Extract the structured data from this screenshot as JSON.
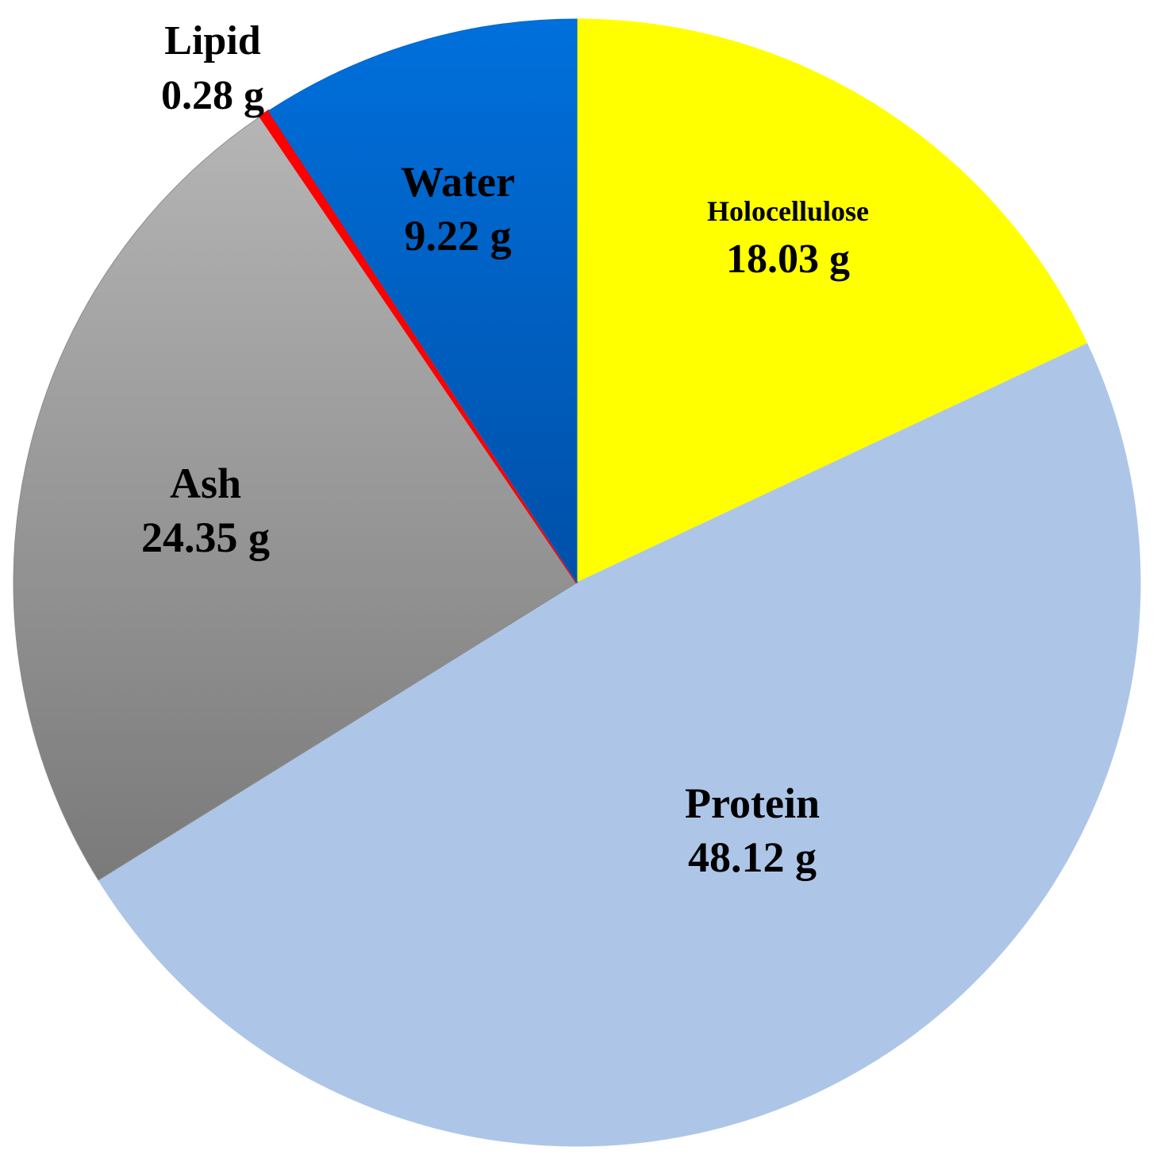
{
  "chart_data": {
    "type": "pie",
    "unit": "g",
    "start_angle_deg": 0,
    "direction": "clockwise",
    "slices": [
      {
        "name": "Holocellulose",
        "value": 18.03,
        "label": "18.03 g",
        "color": "#FFFF00"
      },
      {
        "name": "Protein",
        "value": 48.12,
        "label": "48.12 g",
        "color": "#ADC6E8"
      },
      {
        "name": "Ash",
        "value": 24.35,
        "label": "24.35 g",
        "color": "#8C8C8C"
      },
      {
        "name": "Lipid",
        "value": 0.28,
        "label": "0.28 g",
        "color": "#FF0000"
      },
      {
        "name": "Water",
        "value": 9.22,
        "label": "9.22 g",
        "color": "#0066CC"
      }
    ]
  }
}
